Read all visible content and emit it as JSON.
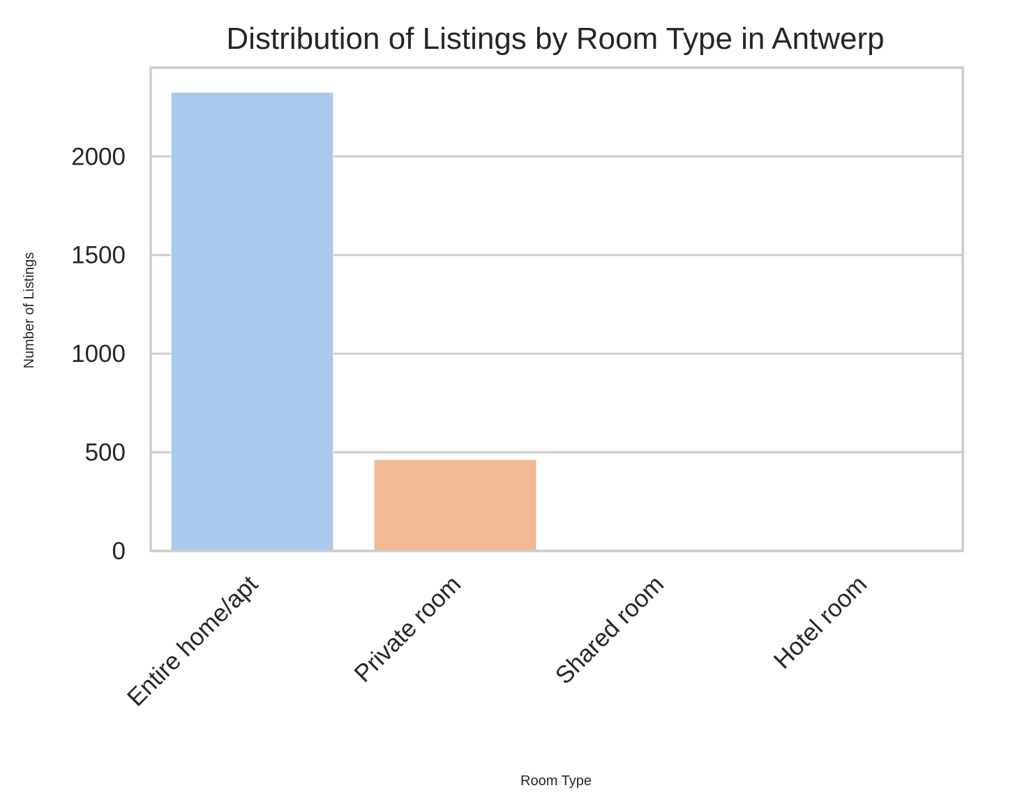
{
  "chart_data": {
    "type": "bar",
    "title": "Distribution of Listings by Room Type in Antwerp",
    "xlabel": "Room Type",
    "ylabel": "Number of Listings",
    "categories": [
      "Entire home/apt",
      "Private room",
      "Shared room",
      "Hotel room"
    ],
    "values": [
      2325,
      463,
      5,
      3
    ],
    "colors": [
      "#abc9ec",
      "#f0b893",
      "#8fd0a0",
      "#f3a3a3"
    ],
    "ylim": [
      0,
      2450
    ],
    "yticks": [
      0,
      500,
      1000,
      1500,
      2000
    ],
    "ytick_labels": [
      "0",
      "500",
      "1000",
      "1500",
      "2000"
    ],
    "grid": "horizontal",
    "style": "seaborn whitegrid, pastel palette"
  }
}
